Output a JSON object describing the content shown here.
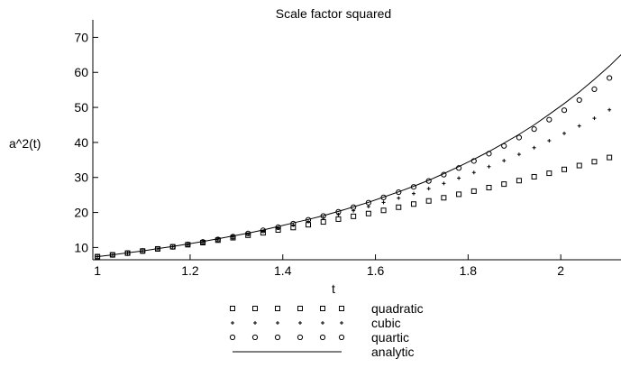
{
  "chart_data": {
    "type": "scatter",
    "title": "Scale factor squared",
    "xlabel": "t",
    "ylabel": "a^2(t)",
    "xlim": [
      0.99,
      2.13
    ],
    "ylim": [
      6.5,
      75
    ],
    "x_ticks": [
      1,
      1.2,
      1.4,
      1.6,
      1.8,
      2
    ],
    "x_tick_labels": [
      "1",
      "1.2",
      "1.4",
      "1.6",
      "1.8",
      "2"
    ],
    "y_ticks": [
      10,
      20,
      30,
      40,
      50,
      60,
      70
    ],
    "y_tick_labels": [
      "10",
      "20",
      "30",
      "40",
      "50",
      "60",
      "70"
    ],
    "grid": false,
    "legend_position": "bottom",
    "x": [
      1.0,
      1.0325,
      1.065,
      1.0975,
      1.13,
      1.1625,
      1.195,
      1.2275,
      1.26,
      1.2925,
      1.325,
      1.3575,
      1.39,
      1.4225,
      1.455,
      1.4875,
      1.52,
      1.5525,
      1.585,
      1.6175,
      1.65,
      1.6825,
      1.715,
      1.7475,
      1.78,
      1.8125,
      1.845,
      1.8775,
      1.91,
      1.9425,
      1.975,
      2.0075,
      2.04,
      2.0725,
      2.105,
      2.1375
    ],
    "series": [
      {
        "name": "quadratic",
        "marker": "square",
        "values": [
          7.4,
          7.9,
          8.4,
          9.0,
          9.6,
          10.2,
          10.8,
          11.4,
          12.1,
          12.8,
          13.5,
          14.2,
          15.0,
          15.7,
          16.5,
          17.3,
          18.1,
          18.9,
          19.7,
          20.6,
          21.5,
          22.4,
          23.3,
          24.2,
          25.2,
          26.1,
          27.1,
          28.1,
          29.1,
          30.2,
          31.2,
          32.3,
          33.4,
          34.5,
          35.7,
          36.8
        ]
      },
      {
        "name": "cubic",
        "marker": "plus",
        "values": [
          7.4,
          7.9,
          8.4,
          9.0,
          9.6,
          10.2,
          10.8,
          11.5,
          12.2,
          13.0,
          13.8,
          14.6,
          15.5,
          16.4,
          17.4,
          18.4,
          19.4,
          20.5,
          21.7,
          22.9,
          24.1,
          25.4,
          26.8,
          28.3,
          29.8,
          31.4,
          33.1,
          34.8,
          36.6,
          38.5,
          40.5,
          42.6,
          44.7,
          46.9,
          49.3,
          51.7
        ]
      },
      {
        "name": "quartic",
        "marker": "circle",
        "values": [
          7.4,
          7.9,
          8.4,
          9.0,
          9.6,
          10.2,
          10.9,
          11.6,
          12.3,
          13.1,
          14.0,
          14.9,
          15.8,
          16.8,
          17.9,
          19.0,
          20.2,
          21.5,
          22.8,
          24.3,
          25.8,
          27.3,
          29.0,
          30.8,
          32.7,
          34.7,
          36.8,
          39.0,
          41.4,
          43.8,
          46.5,
          49.2,
          52.1,
          55.2,
          58.4,
          61.8
        ]
      },
      {
        "name": "analytic",
        "marker": "line",
        "values": [
          7.4,
          7.9,
          8.5,
          9.0,
          9.7,
          10.3,
          11.0,
          11.7,
          12.5,
          13.3,
          14.1,
          15.0,
          16.0,
          17.0,
          18.0,
          19.1,
          20.3,
          21.6,
          22.9,
          24.4,
          25.9,
          27.5,
          29.2,
          31.1,
          33.1,
          35.2,
          37.4,
          39.8,
          42.3,
          45.0,
          48.0,
          51.1,
          54.4,
          58.0,
          61.8,
          66.0
        ]
      }
    ]
  }
}
